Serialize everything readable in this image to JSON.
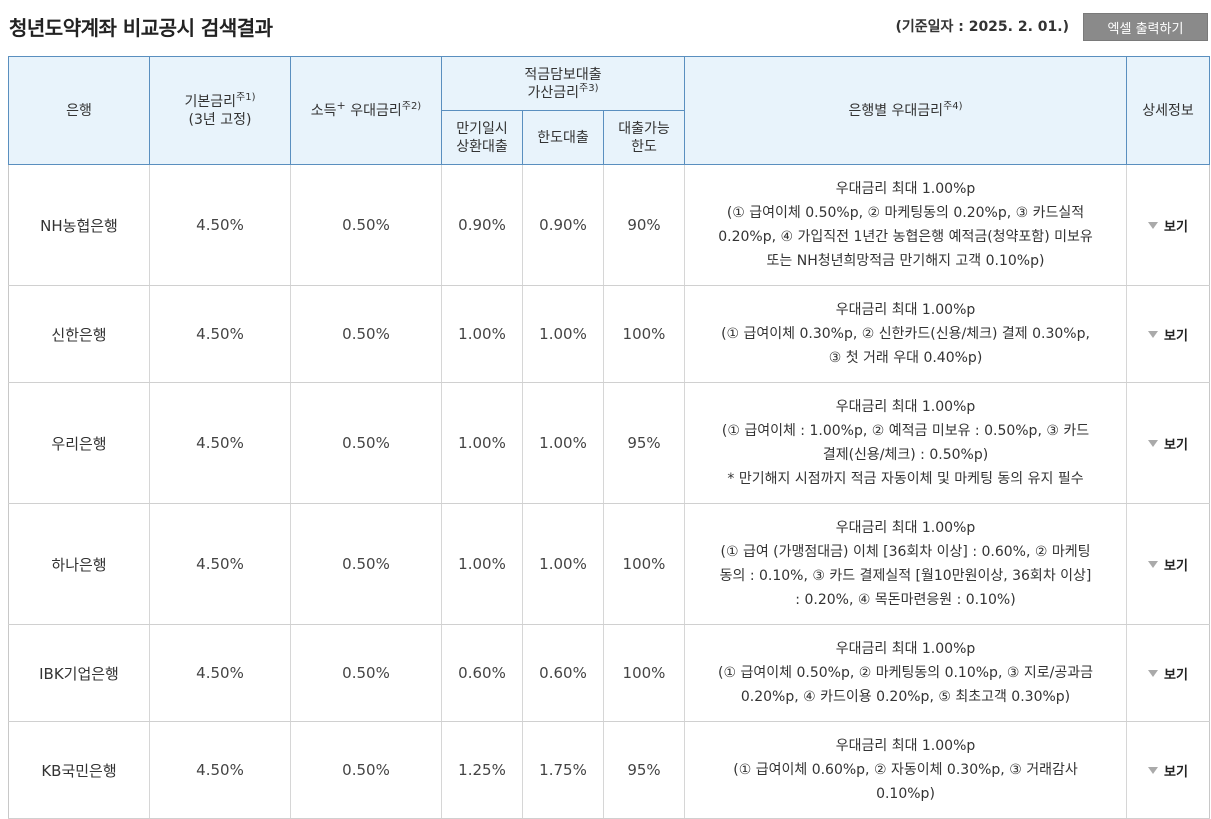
{
  "header": {
    "title": "청년도약계좌 비교공시 검색결과",
    "base_date": "(기준일자 : 2025. 2. 01.)",
    "excel_button": "엑셀 출력하기"
  },
  "columns": {
    "bank": "은행",
    "base_rate": "기본금리",
    "base_rate_note": "주1)",
    "base_rate_sub": "(3년 고정)",
    "income_rate_prefix": "소득",
    "income_rate_plus": "+",
    "income_rate_suffix": "우대금리",
    "income_rate_note": "주2)",
    "loan_group_line1": "적금담보대출",
    "loan_group_line2": "가산금리",
    "loan_group_note": "주3)",
    "lump_line1": "만기일시",
    "lump_line2": "상환대출",
    "limit_loan": "한도대출",
    "loanable_line1": "대출가능",
    "loanable_line2": "한도",
    "bank_pref": "은행별 우대금리",
    "bank_pref_note": "주4)",
    "detail": "상세정보"
  },
  "view_label": "보기",
  "rows": [
    {
      "bank": "NH농협은행",
      "base_rate": "4.50%",
      "income_rate": "0.50%",
      "lump_loan": "0.90%",
      "limit_loan": "0.90%",
      "loanable_limit": "90%",
      "pref_lines": [
        "우대금리 최대 1.00%p",
        "(① 급여이체 0.50%p, ② 마케팅동의 0.20%p, ③ 카드실적",
        "0.20%p, ④ 가입직전 1년간 농협은행 예적금(청약포함) 미보유",
        "또는 NH청년희망적금 만기해지 고객 0.10%p)"
      ]
    },
    {
      "bank": "신한은행",
      "base_rate": "4.50%",
      "income_rate": "0.50%",
      "lump_loan": "1.00%",
      "limit_loan": "1.00%",
      "loanable_limit": "100%",
      "pref_lines": [
        "우대금리 최대 1.00%p",
        "(① 급여이체 0.30%p, ② 신한카드(신용/체크) 결제 0.30%p,",
        "③ 첫 거래 우대 0.40%p)"
      ]
    },
    {
      "bank": "우리은행",
      "base_rate": "4.50%",
      "income_rate": "0.50%",
      "lump_loan": "1.00%",
      "limit_loan": "1.00%",
      "loanable_limit": "95%",
      "pref_lines": [
        "우대금리 최대 1.00%p",
        "(① 급여이체 : 1.00%p, ② 예적금 미보유 : 0.50%p, ③ 카드",
        "결제(신용/체크) : 0.50%p)",
        "* 만기해지 시점까지 적금 자동이체 및 마케팅 동의 유지 필수"
      ]
    },
    {
      "bank": "하나은행",
      "base_rate": "4.50%",
      "income_rate": "0.50%",
      "lump_loan": "1.00%",
      "limit_loan": "1.00%",
      "loanable_limit": "100%",
      "pref_lines": [
        "우대금리 최대 1.00%p",
        "(① 급여 (가맹점대금) 이체 [36회차 이상] : 0.60%, ② 마케팅",
        "동의 : 0.10%, ③ 카드 결제실적 [월10만원이상, 36회차 이상]",
        ": 0.20%, ④ 목돈마련응원 : 0.10%)"
      ]
    },
    {
      "bank": "IBK기업은행",
      "base_rate": "4.50%",
      "income_rate": "0.50%",
      "lump_loan": "0.60%",
      "limit_loan": "0.60%",
      "loanable_limit": "100%",
      "pref_lines": [
        "우대금리 최대 1.00%p",
        "(① 급여이체 0.50%p, ② 마케팅동의 0.10%p, ③ 지로/공과금",
        "0.20%p, ④ 카드이용 0.20%p, ⑤ 최초고객 0.30%p)"
      ]
    },
    {
      "bank": "KB국민은행",
      "base_rate": "4.50%",
      "income_rate": "0.50%",
      "lump_loan": "1.25%",
      "limit_loan": "1.75%",
      "loanable_limit": "95%",
      "pref_lines": [
        "우대금리 최대 1.00%p",
        "(① 급여이체 0.60%p, ② 자동이체 0.30%p, ③ 거래감사",
        "0.10%p)"
      ]
    }
  ]
}
